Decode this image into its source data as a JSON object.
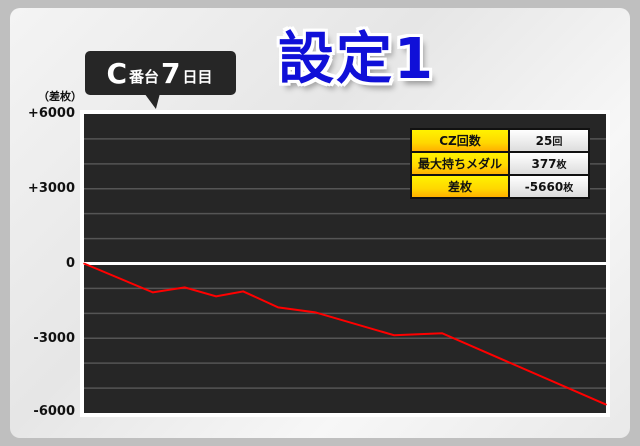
{
  "header": {
    "machine_prefix": "C",
    "machine_suffix": "番台",
    "day_number": "7",
    "day_suffix": "日目",
    "setting_title": "設定1"
  },
  "stats": [
    {
      "label": "CZ回数",
      "value": "25",
      "unit": "回"
    },
    {
      "label": "最大持ちメダル",
      "value": "377",
      "unit": "枚"
    },
    {
      "label": "差枚",
      "value": "-5660",
      "unit": "枚"
    }
  ],
  "colors": {
    "line": "#ff0000",
    "plot_bg": "#262626",
    "title": "#1010d8",
    "stat_label_bg": "#ffe000"
  },
  "chart_data": {
    "type": "line",
    "ylabel": "（差枚）",
    "ylim": [
      -6000,
      6000
    ],
    "yticks": [
      6000,
      3000,
      0,
      -3000,
      -6000
    ],
    "ytick_labels": [
      "+6000",
      "+3000",
      "0",
      "-3000",
      "-6000"
    ],
    "grid": true,
    "grid_step": 1000,
    "x": [
      0,
      13.2,
      19.3,
      25.3,
      30.5,
      37.2,
      44.3,
      59.4,
      68.6,
      100
    ],
    "values": [
      0,
      -1160,
      -960,
      -1320,
      -1120,
      -1760,
      -1960,
      -2880,
      -2800,
      -5660
    ]
  }
}
